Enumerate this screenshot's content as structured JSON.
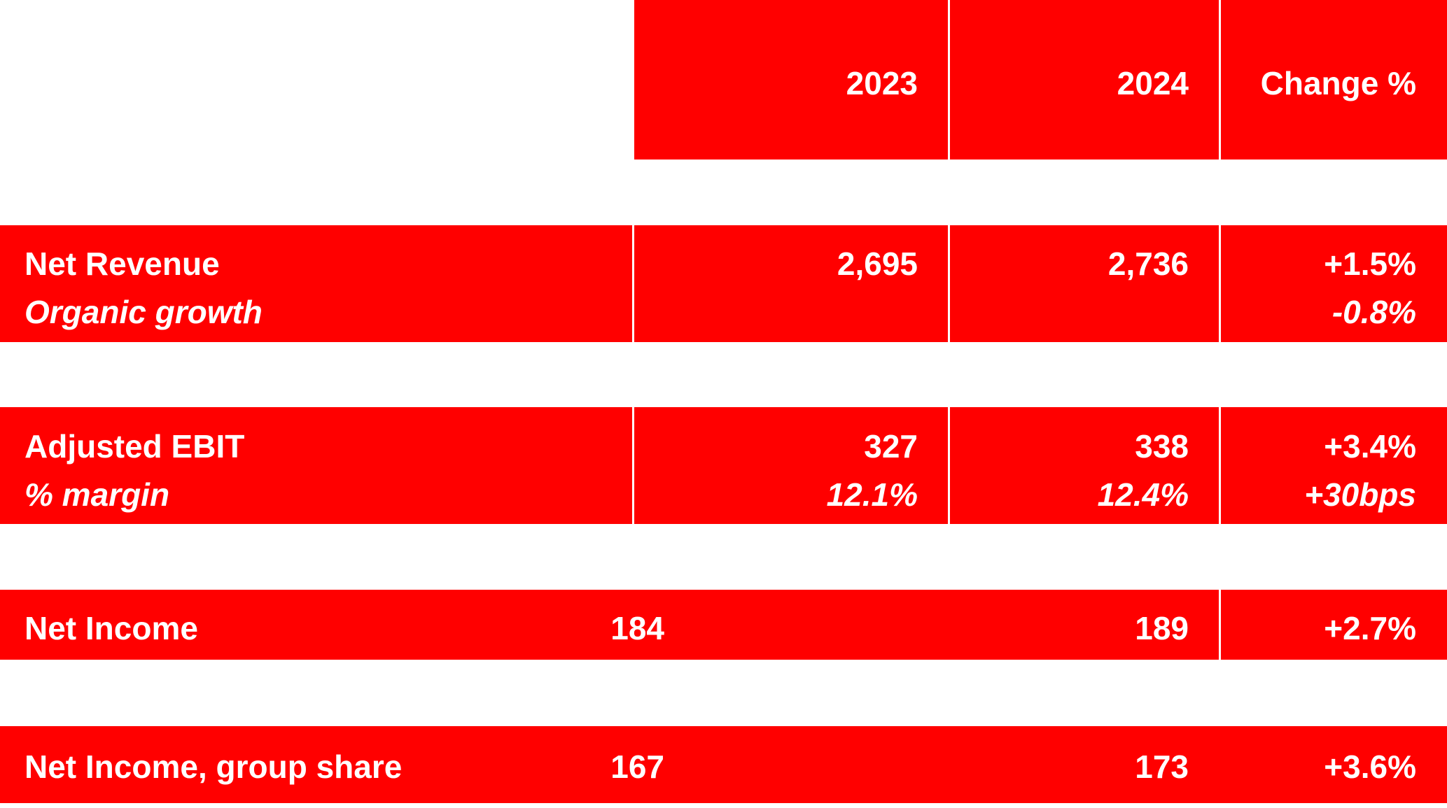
{
  "header": {
    "col_2023": "2023",
    "col_2024": "2024",
    "col_change": "Change %"
  },
  "rows": [
    {
      "label": "Net Revenue",
      "sublabel": "Organic growth",
      "v2023": "2,695",
      "v2024": "2,736",
      "change": "+1.5%",
      "sub_change": "-0.8%"
    },
    {
      "label": "Adjusted EBIT",
      "sublabel": "% margin",
      "v2023": "327",
      "v2024": "338",
      "change": "+3.4%",
      "sub_v2023": "12.1%",
      "sub_v2024": "12.4%",
      "sub_change": "+30bps"
    },
    {
      "label": "Net Income",
      "v2023": "184",
      "v2024": "189",
      "change": "+2.7%"
    },
    {
      "label": "Net Income, group share",
      "v2023": "167",
      "v2024": "173",
      "change": "+3.6%"
    }
  ],
  "colors": {
    "cell_background": "#ff0000",
    "text": "#ffffff",
    "page_background": "#ffffff"
  }
}
